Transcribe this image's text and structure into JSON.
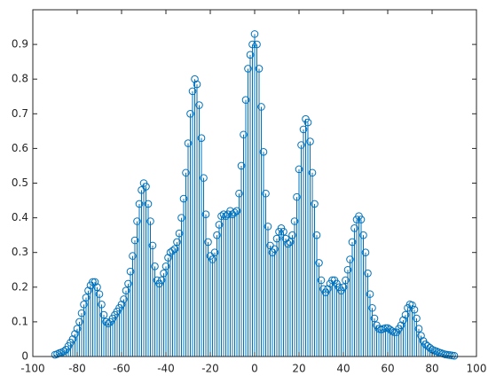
{
  "chart_data": {
    "type": "stem",
    "color": "#0072bd",
    "x": [
      -90,
      -89,
      -88,
      -87,
      -86,
      -85,
      -84,
      -83,
      -82,
      -81,
      -80,
      -79,
      -78,
      -77,
      -76,
      -75,
      -74,
      -73,
      -72,
      -71,
      -70,
      -69,
      -68,
      -67,
      -66,
      -65,
      -64,
      -63,
      -62,
      -61,
      -60,
      -59,
      -58,
      -57,
      -56,
      -55,
      -54,
      -53,
      -52,
      -51,
      -50,
      -49,
      -48,
      -47,
      -46,
      -45,
      -44,
      -43,
      -42,
      -41,
      -40,
      -39,
      -38,
      -37,
      -36,
      -35,
      -34,
      -33,
      -32,
      -31,
      -30,
      -29,
      -28,
      -27,
      -26,
      -25,
      -24,
      -23,
      -22,
      -21,
      -20,
      -19,
      -18,
      -17,
      -16,
      -15,
      -14,
      -13,
      -12,
      -11,
      -10,
      -9,
      -8,
      -7,
      -6,
      -5,
      -4,
      -3,
      -2,
      -1,
      0,
      1,
      2,
      3,
      4,
      5,
      6,
      7,
      8,
      9,
      10,
      11,
      12,
      13,
      14,
      15,
      16,
      17,
      18,
      19,
      20,
      21,
      22,
      23,
      24,
      25,
      26,
      27,
      28,
      29,
      30,
      31,
      32,
      33,
      34,
      35,
      36,
      37,
      38,
      39,
      40,
      41,
      42,
      43,
      44,
      45,
      46,
      47,
      48,
      49,
      50,
      51,
      52,
      53,
      54,
      55,
      56,
      57,
      58,
      59,
      60,
      61,
      62,
      63,
      64,
      65,
      66,
      67,
      68,
      69,
      70,
      71,
      72,
      73,
      74,
      75,
      76,
      77,
      78,
      79,
      80,
      81,
      82,
      83,
      84,
      85,
      86,
      87,
      88,
      89,
      90
    ],
    "values": [
      0.005,
      0.007,
      0.01,
      0.012,
      0.015,
      0.02,
      0.03,
      0.04,
      0.05,
      0.065,
      0.08,
      0.1,
      0.125,
      0.15,
      0.17,
      0.19,
      0.205,
      0.215,
      0.215,
      0.2,
      0.18,
      0.15,
      0.12,
      0.1,
      0.095,
      0.1,
      0.11,
      0.12,
      0.13,
      0.14,
      0.15,
      0.165,
      0.19,
      0.21,
      0.245,
      0.29,
      0.335,
      0.39,
      0.44,
      0.48,
      0.5,
      0.49,
      0.44,
      0.39,
      0.32,
      0.26,
      0.22,
      0.21,
      0.22,
      0.24,
      0.26,
      0.285,
      0.3,
      0.305,
      0.31,
      0.33,
      0.355,
      0.4,
      0.455,
      0.53,
      0.615,
      0.7,
      0.765,
      0.8,
      0.785,
      0.725,
      0.63,
      0.515,
      0.41,
      0.33,
      0.29,
      0.28,
      0.3,
      0.35,
      0.38,
      0.405,
      0.41,
      0.405,
      0.41,
      0.42,
      0.41,
      0.415,
      0.42,
      0.47,
      0.55,
      0.64,
      0.74,
      0.83,
      0.87,
      0.9,
      0.93,
      0.9,
      0.83,
      0.72,
      0.59,
      0.47,
      0.375,
      0.32,
      0.3,
      0.31,
      0.34,
      0.36,
      0.37,
      0.36,
      0.34,
      0.325,
      0.33,
      0.35,
      0.39,
      0.46,
      0.54,
      0.61,
      0.655,
      0.685,
      0.675,
      0.62,
      0.53,
      0.44,
      0.35,
      0.27,
      0.22,
      0.195,
      0.185,
      0.195,
      0.21,
      0.22,
      0.22,
      0.21,
      0.2,
      0.19,
      0.2,
      0.22,
      0.25,
      0.28,
      0.33,
      0.37,
      0.395,
      0.405,
      0.395,
      0.35,
      0.3,
      0.24,
      0.18,
      0.14,
      0.11,
      0.09,
      0.08,
      0.078,
      0.08,
      0.082,
      0.082,
      0.078,
      0.073,
      0.07,
      0.07,
      0.08,
      0.09,
      0.105,
      0.12,
      0.14,
      0.15,
      0.148,
      0.135,
      0.11,
      0.08,
      0.06,
      0.045,
      0.035,
      0.03,
      0.025,
      0.02,
      0.017,
      0.015,
      0.012,
      0.01,
      0.008,
      0.006,
      0.005,
      0.004,
      0.003,
      0.002
    ],
    "xlim": [
      -100,
      100
    ],
    "xticks": [
      -100,
      -80,
      -60,
      -40,
      -20,
      0,
      20,
      40,
      60,
      80,
      100
    ],
    "ylim": [
      0,
      1
    ],
    "yticks": [
      0,
      0.1,
      0.2,
      0.3,
      0.4,
      0.5,
      0.6,
      0.7,
      0.8,
      0.9
    ]
  }
}
